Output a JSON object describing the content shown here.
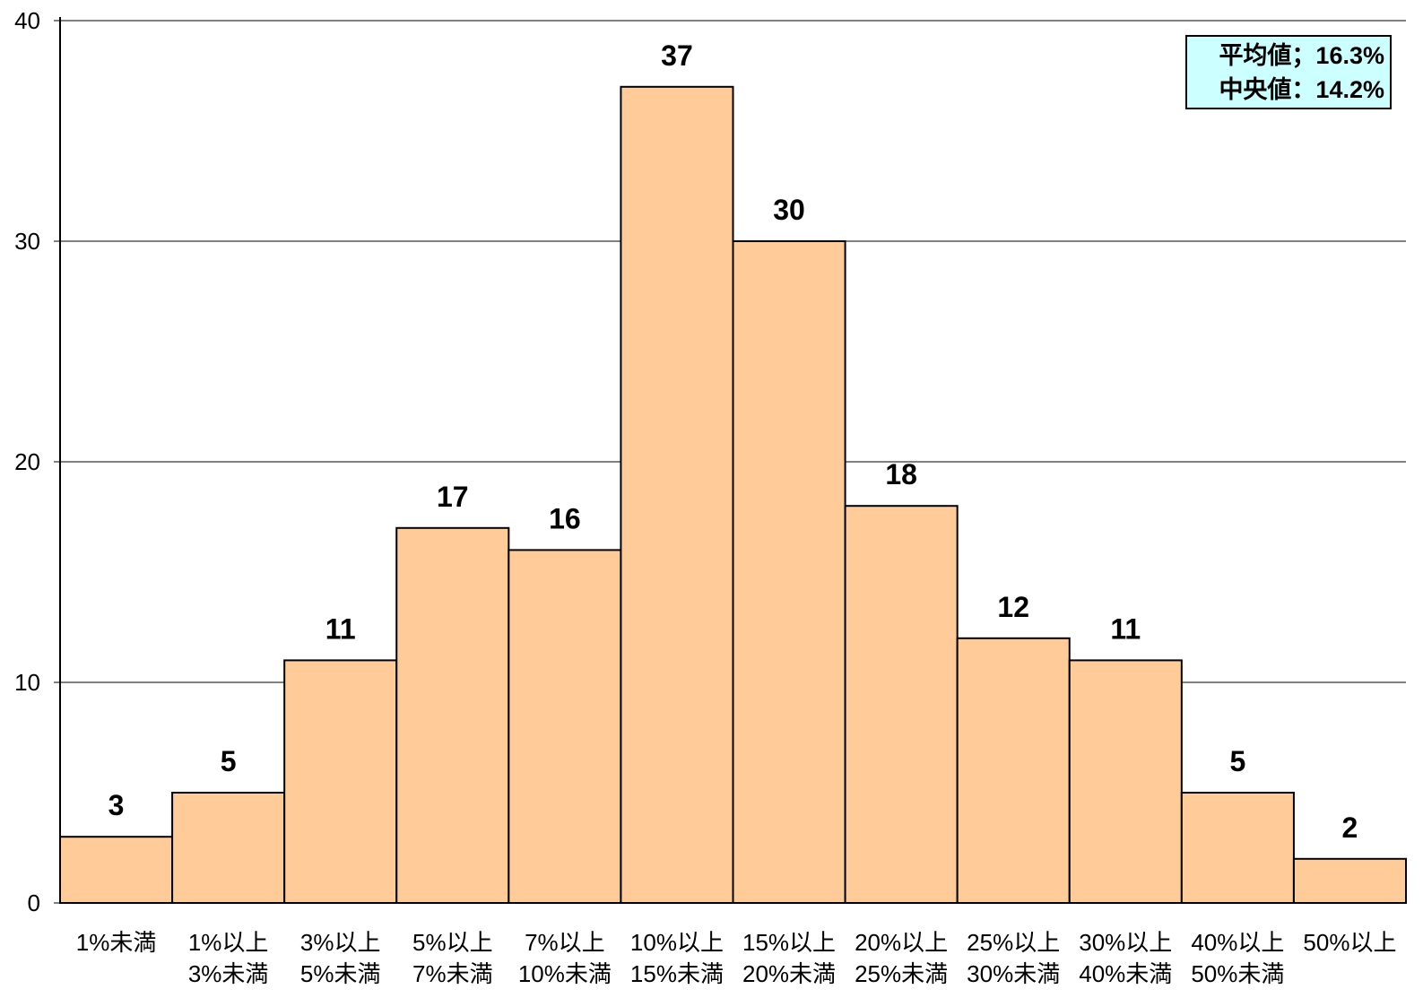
{
  "chart_data": {
    "type": "bar",
    "categories": [
      [
        "1%未満"
      ],
      [
        "1%以上",
        "3%未満"
      ],
      [
        "3%以上",
        "5%未満"
      ],
      [
        "5%以上",
        "7%未満"
      ],
      [
        "7%以上",
        "10%未満"
      ],
      [
        "10%以上",
        "15%未満"
      ],
      [
        "15%以上",
        "20%未満"
      ],
      [
        "20%以上",
        "25%未満"
      ],
      [
        "25%以上",
        "30%未満"
      ],
      [
        "30%以上",
        "40%未満"
      ],
      [
        "40%以上",
        "50%未満"
      ],
      [
        "50%以上"
      ]
    ],
    "values": [
      3,
      5,
      11,
      17,
      16,
      37,
      30,
      18,
      12,
      11,
      5,
      2
    ],
    "title": "",
    "xlabel": "",
    "ylabel": "",
    "ylim": [
      0,
      40
    ],
    "yticks": [
      0,
      10,
      20,
      30,
      40
    ],
    "grid": true,
    "bar_color": "#FFCC99",
    "stats_box": {
      "line1": "平均値；16.3%",
      "line2": "中央値：14.2%",
      "background": "#CCFFFF",
      "position": "top-right"
    }
  }
}
